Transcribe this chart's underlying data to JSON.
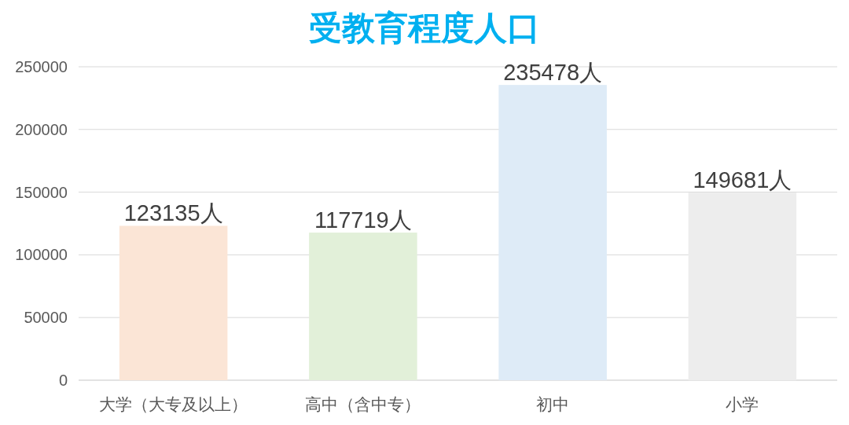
{
  "chart_data": {
    "type": "bar",
    "title": "受教育程度人口",
    "categories": [
      "大学（大专及以上）",
      "高中（含中专）",
      "初中",
      "小学"
    ],
    "values": [
      123135,
      117719,
      235478,
      149681
    ],
    "colors": [
      "#fbe5d6",
      "#e2f0d9",
      "#deebf7",
      "#ededed"
    ],
    "value_labels": [
      "123135人",
      "117719人",
      "235478人",
      "149681人"
    ],
    "ylim": [
      0,
      250000
    ],
    "yticks": [
      0,
      50000,
      100000,
      150000,
      200000,
      250000
    ],
    "grid": "y"
  }
}
